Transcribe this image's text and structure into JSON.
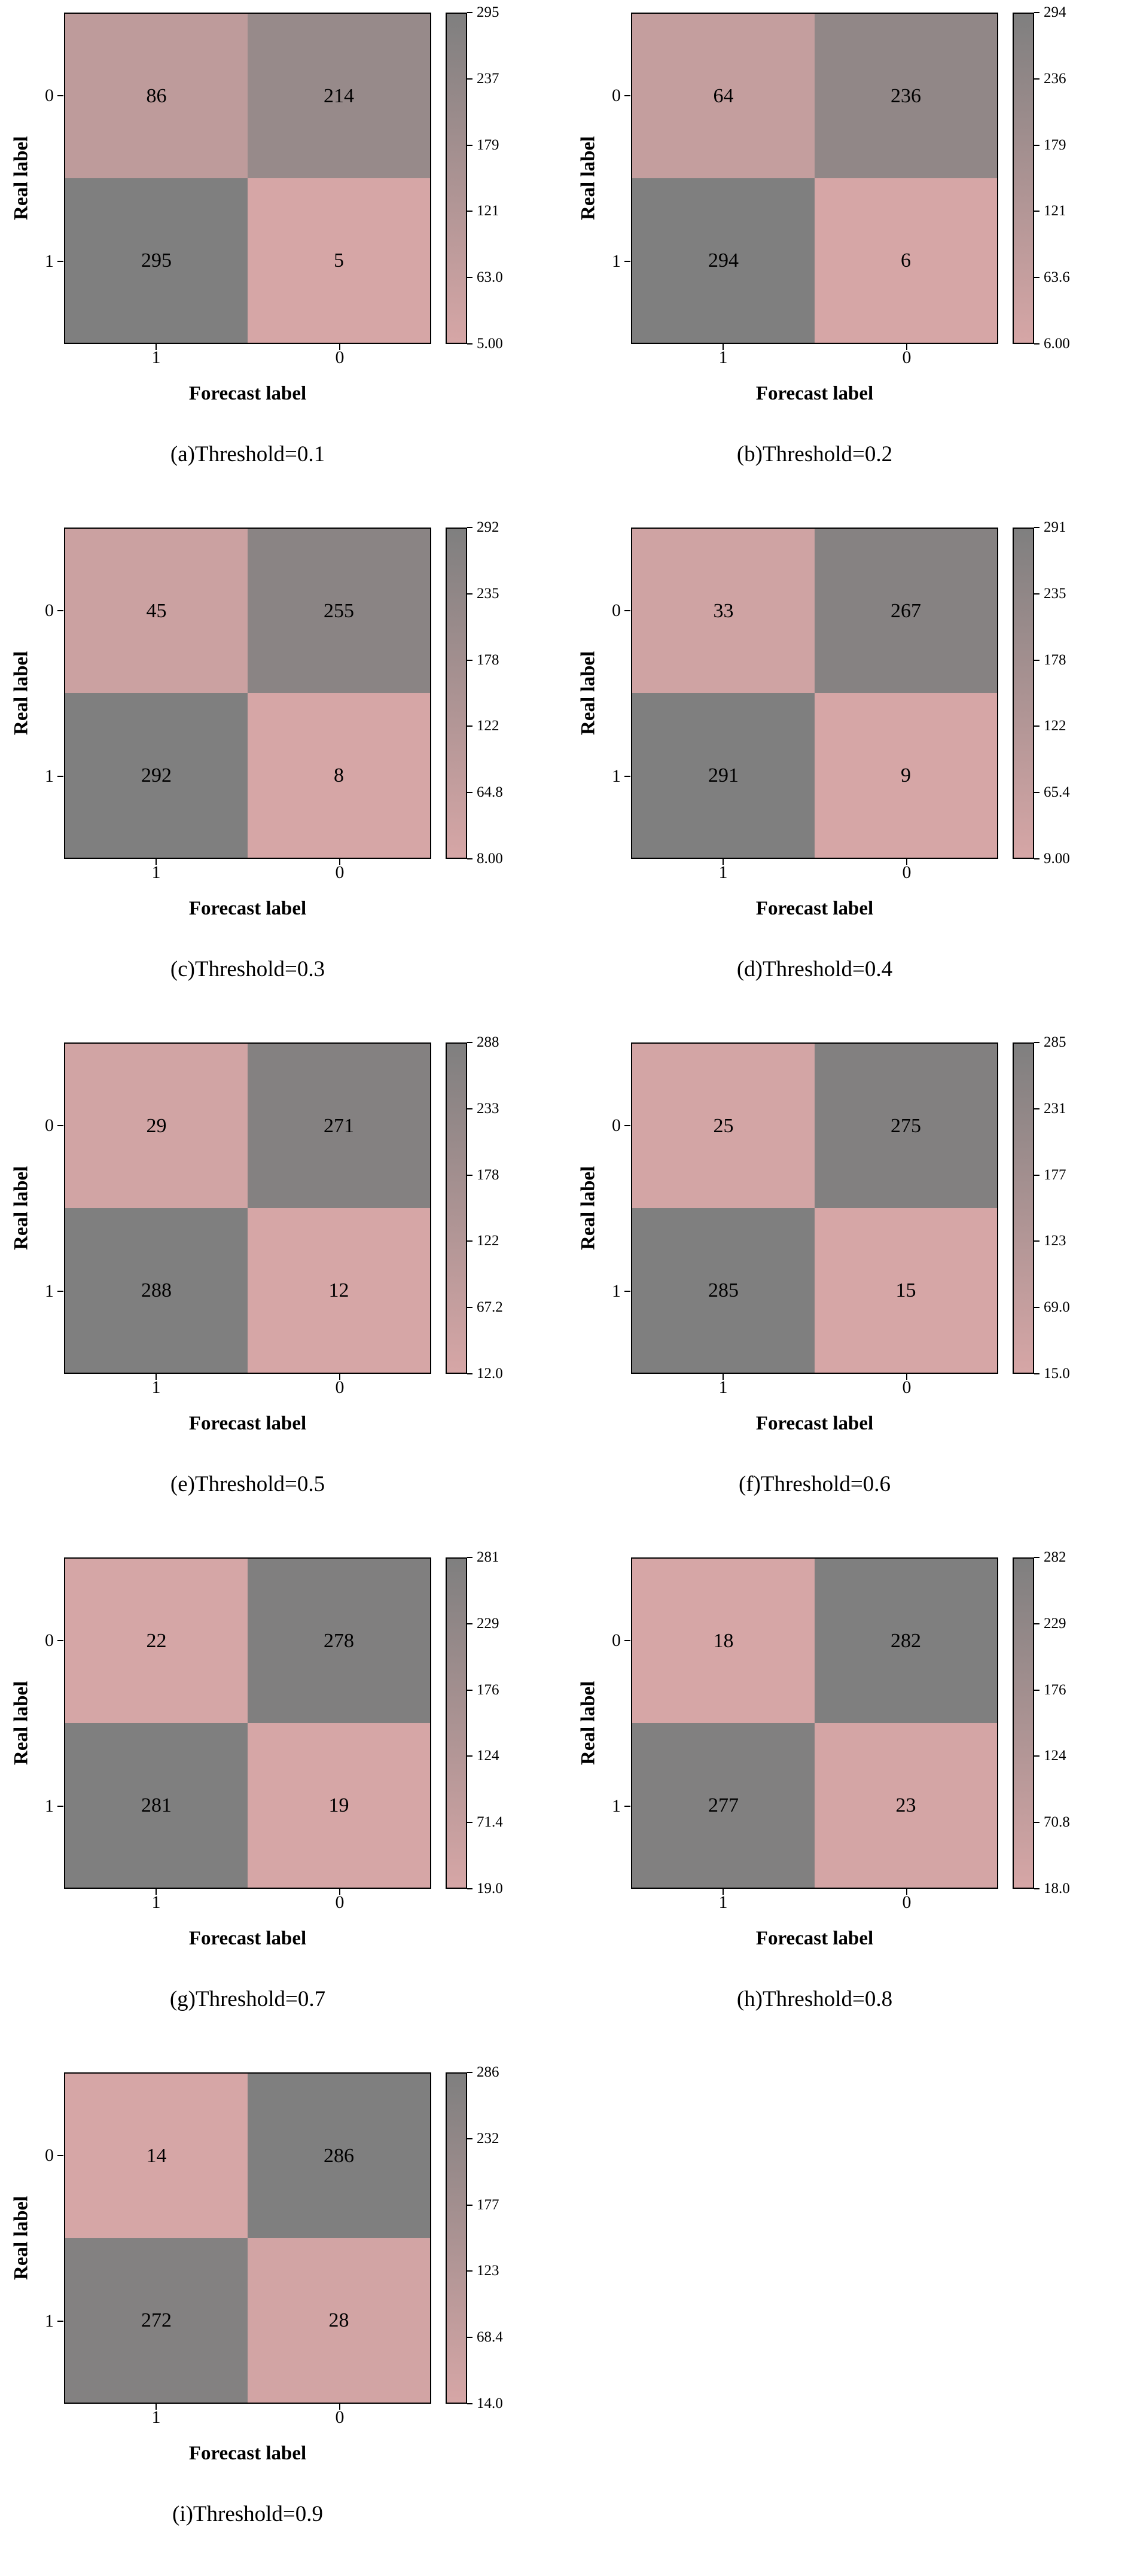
{
  "figure": {
    "ylabel": "Real label",
    "xlabel": "Forecast label"
  },
  "colormap": {
    "low": "#d6a6a6",
    "high": "#7f7f7f"
  },
  "chart_data": [
    {
      "type": "heatmap",
      "caption": "(a)Threshold=0.1",
      "xlabel": "Forecast label",
      "ylabel": "Real label",
      "x_ticks": [
        "1",
        "0"
      ],
      "y_ticks": [
        "0",
        "1"
      ],
      "matrix": [
        [
          86,
          214
        ],
        [
          295,
          5
        ]
      ],
      "vmin": 5,
      "vmax": 295,
      "colorbar_ticks": [
        "295",
        "237",
        "179",
        "121",
        "63.0",
        "5.00"
      ]
    },
    {
      "type": "heatmap",
      "caption": "(b)Threshold=0.2",
      "xlabel": "Forecast label",
      "ylabel": "Real label",
      "x_ticks": [
        "1",
        "0"
      ],
      "y_ticks": [
        "0",
        "1"
      ],
      "matrix": [
        [
          64,
          236
        ],
        [
          294,
          6
        ]
      ],
      "vmin": 6,
      "vmax": 294,
      "colorbar_ticks": [
        "294",
        "236",
        "179",
        "121",
        "63.6",
        "6.00"
      ]
    },
    {
      "type": "heatmap",
      "caption": "(c)Threshold=0.3",
      "xlabel": "Forecast label",
      "ylabel": "Real label",
      "x_ticks": [
        "1",
        "0"
      ],
      "y_ticks": [
        "0",
        "1"
      ],
      "matrix": [
        [
          45,
          255
        ],
        [
          292,
          8
        ]
      ],
      "vmin": 8,
      "vmax": 292,
      "colorbar_ticks": [
        "292",
        "235",
        "178",
        "122",
        "64.8",
        "8.00"
      ]
    },
    {
      "type": "heatmap",
      "caption": "(d)Threshold=0.4",
      "xlabel": "Forecast label",
      "ylabel": "Real label",
      "x_ticks": [
        "1",
        "0"
      ],
      "y_ticks": [
        "0",
        "1"
      ],
      "matrix": [
        [
          33,
          267
        ],
        [
          291,
          9
        ]
      ],
      "vmin": 9,
      "vmax": 291,
      "colorbar_ticks": [
        "291",
        "235",
        "178",
        "122",
        "65.4",
        "9.00"
      ]
    },
    {
      "type": "heatmap",
      "caption": "(e)Threshold=0.5",
      "xlabel": "Forecast label",
      "ylabel": "Real label",
      "x_ticks": [
        "1",
        "0"
      ],
      "y_ticks": [
        "0",
        "1"
      ],
      "matrix": [
        [
          29,
          271
        ],
        [
          288,
          12
        ]
      ],
      "vmin": 12,
      "vmax": 288,
      "colorbar_ticks": [
        "288",
        "233",
        "178",
        "122",
        "67.2",
        "12.0"
      ]
    },
    {
      "type": "heatmap",
      "caption": "(f)Threshold=0.6",
      "xlabel": "Forecast label",
      "ylabel": "Real label",
      "x_ticks": [
        "1",
        "0"
      ],
      "y_ticks": [
        "0",
        "1"
      ],
      "matrix": [
        [
          25,
          275
        ],
        [
          285,
          15
        ]
      ],
      "vmin": 15,
      "vmax": 285,
      "colorbar_ticks": [
        "285",
        "231",
        "177",
        "123",
        "69.0",
        "15.0"
      ]
    },
    {
      "type": "heatmap",
      "caption": "(g)Threshold=0.7",
      "xlabel": "Forecast label",
      "ylabel": "Real label",
      "x_ticks": [
        "1",
        "0"
      ],
      "y_ticks": [
        "0",
        "1"
      ],
      "matrix": [
        [
          22,
          278
        ],
        [
          281,
          19
        ]
      ],
      "vmin": 19,
      "vmax": 281,
      "colorbar_ticks": [
        "281",
        "229",
        "176",
        "124",
        "71.4",
        "19.0"
      ]
    },
    {
      "type": "heatmap",
      "caption": "(h)Threshold=0.8",
      "xlabel": "Forecast label",
      "ylabel": "Real label",
      "x_ticks": [
        "1",
        "0"
      ],
      "y_ticks": [
        "0",
        "1"
      ],
      "matrix": [
        [
          18,
          282
        ],
        [
          277,
          23
        ]
      ],
      "vmin": 18,
      "vmax": 282,
      "colorbar_ticks": [
        "282",
        "229",
        "176",
        "124",
        "70.8",
        "18.0"
      ]
    },
    {
      "type": "heatmap",
      "caption": "(i)Threshold=0.9",
      "xlabel": "Forecast label",
      "ylabel": "Real label",
      "x_ticks": [
        "1",
        "0"
      ],
      "y_ticks": [
        "0",
        "1"
      ],
      "matrix": [
        [
          14,
          286
        ],
        [
          272,
          28
        ]
      ],
      "vmin": 14,
      "vmax": 286,
      "colorbar_ticks": [
        "286",
        "232",
        "177",
        "123",
        "68.4",
        "14.0"
      ]
    }
  ]
}
